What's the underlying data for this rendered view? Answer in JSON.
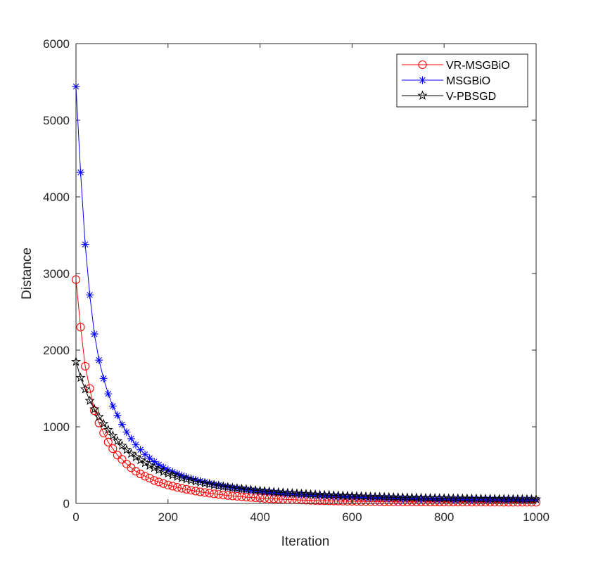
{
  "chart_data": {
    "type": "line",
    "title": "",
    "xlabel": "Iteration",
    "ylabel": "Distance",
    "xlim": [
      0,
      1000
    ],
    "ylim": [
      0,
      6000
    ],
    "xticks": [
      0,
      200,
      400,
      600,
      800,
      1000
    ],
    "yticks": [
      0,
      1000,
      2000,
      3000,
      4000,
      5000,
      6000
    ],
    "grid": false,
    "legend_position": "top-right",
    "x": [
      0,
      10,
      20,
      30,
      40,
      50,
      60,
      70,
      80,
      90,
      100,
      110,
      120,
      130,
      140,
      150,
      160,
      170,
      180,
      190,
      200,
      210,
      220,
      230,
      240,
      250,
      260,
      270,
      280,
      290,
      300,
      310,
      320,
      330,
      340,
      350,
      360,
      370,
      380,
      390,
      400,
      410,
      420,
      430,
      440,
      450,
      460,
      470,
      480,
      490,
      500,
      510,
      520,
      530,
      540,
      550,
      560,
      570,
      580,
      590,
      600,
      610,
      620,
      630,
      640,
      650,
      660,
      670,
      680,
      690,
      700,
      710,
      720,
      730,
      740,
      750,
      760,
      770,
      780,
      790,
      800,
      810,
      820,
      830,
      840,
      850,
      860,
      870,
      880,
      890,
      900,
      910,
      920,
      930,
      940,
      950,
      960,
      970,
      980,
      990,
      1000
    ],
    "series": [
      {
        "name": "VR-MSGBiO",
        "color": "#ff0000",
        "marker": "circle",
        "values": [
          2920,
          2300,
          1790,
          1500,
          1210,
          1050,
          920,
          800,
          715,
          630,
          575,
          515,
          465,
          420,
          385,
          355,
          330,
          300,
          280,
          260,
          240,
          225,
          210,
          197,
          184,
          172,
          161,
          151,
          142,
          133,
          125,
          118,
          111,
          104,
          98,
          93,
          88,
          83,
          78,
          74,
          70,
          66,
          63,
          60,
          57,
          54,
          51,
          49,
          46,
          44,
          42,
          40,
          38,
          37,
          35,
          34,
          32,
          31,
          30,
          29,
          28,
          27,
          26,
          25,
          24,
          24,
          23,
          22,
          22,
          21,
          21,
          20,
          20,
          20,
          19,
          19,
          19,
          18,
          18,
          18,
          18,
          17,
          17,
          17,
          17,
          17,
          16,
          16,
          16,
          16,
          16,
          16,
          16,
          15,
          15,
          15,
          15,
          15,
          15,
          15,
          15
        ]
      },
      {
        "name": "MSGBiO",
        "color": "#0000ff",
        "marker": "asterisk",
        "values": [
          5440,
          4320,
          3380,
          2720,
          2210,
          1870,
          1630,
          1430,
          1270,
          1150,
          1030,
          930,
          845,
          765,
          700,
          640,
          590,
          545,
          505,
          470,
          440,
          412,
          387,
          364,
          343,
          325,
          308,
          292,
          277,
          263,
          250,
          238,
          227,
          217,
          207,
          198,
          190,
          182,
          174,
          167,
          160,
          154,
          148,
          142,
          137,
          132,
          127,
          123,
          119,
          115,
          111,
          108,
          104,
          101,
          98,
          95,
          92,
          90,
          87,
          85,
          83,
          81,
          79,
          77,
          75,
          74,
          72,
          71,
          69,
          68,
          67,
          65,
          64,
          63,
          62,
          61,
          60,
          59,
          58,
          58,
          57,
          56,
          55,
          55,
          54,
          54,
          53,
          53,
          52,
          52,
          51,
          51,
          51,
          50,
          50,
          50,
          49,
          49,
          49,
          49,
          48
        ]
      },
      {
        "name": "V-PBSGD",
        "color": "#000000",
        "marker": "star",
        "values": [
          1850,
          1640,
          1490,
          1340,
          1230,
          1130,
          1040,
          960,
          885,
          815,
          755,
          700,
          650,
          605,
          565,
          528,
          495,
          465,
          437,
          412,
          390,
          369,
          350,
          332,
          316,
          301,
          287,
          274,
          262,
          251,
          240,
          230,
          221,
          212,
          204,
          197,
          190,
          183,
          177,
          171,
          165,
          160,
          155,
          150,
          145,
          141,
          137,
          133,
          129,
          126,
          122,
          119,
          116,
          113,
          110,
          108,
          105,
          103,
          100,
          98,
          96,
          94,
          92,
          90,
          88,
          86,
          85,
          83,
          82,
          80,
          79,
          77,
          76,
          75,
          74,
          72,
          71,
          70,
          69,
          68,
          67,
          66,
          65,
          65,
          64,
          63,
          62,
          62,
          61,
          60,
          60,
          59,
          58,
          58,
          57,
          57,
          56,
          56,
          55,
          55,
          55
        ]
      }
    ]
  }
}
